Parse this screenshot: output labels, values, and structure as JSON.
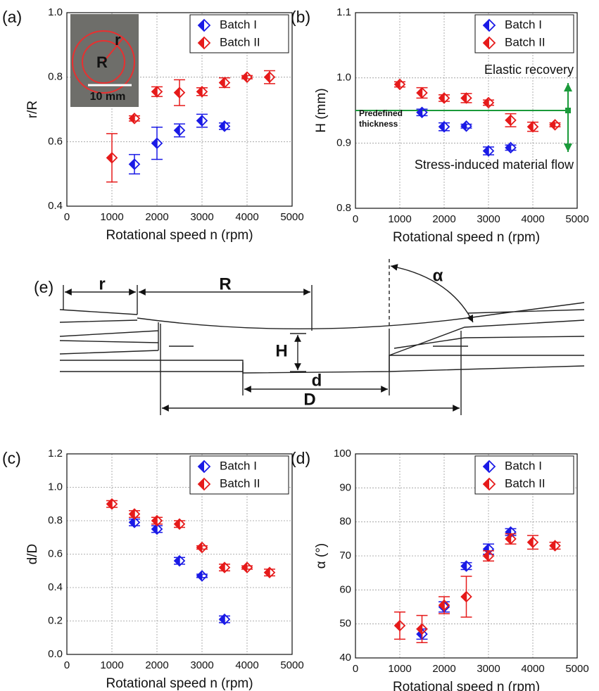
{
  "chart_data": [
    {
      "type": "scatter",
      "panel": "(a)",
      "xlabel": "Rotational speed n (rpm)",
      "ylabel": "r/R",
      "xlim": [
        0,
        5000
      ],
      "xticks": [
        0,
        1000,
        2000,
        3000,
        4000,
        5000
      ],
      "ylim": [
        0.4,
        1.0
      ],
      "yticks": [
        0.4,
        0.6,
        0.8,
        {
          "value": 1.0,
          "label": "1.0"
        }
      ],
      "grid": true,
      "legend": "upper right",
      "inset": {
        "labels": [
          "r",
          "R"
        ],
        "scale": "10 mm"
      },
      "series": [
        {
          "name": "Batch I",
          "color": "#1a1ae6",
          "x": [
            1500,
            2000,
            2500,
            3000,
            3500
          ],
          "values": [
            0.53,
            0.595,
            0.635,
            0.665,
            0.648
          ],
          "errors": [
            0.03,
            0.05,
            0.02,
            0.02,
            0.01
          ]
        },
        {
          "name": "Batch II",
          "color": "#e61a1a",
          "x": [
            1000,
            1500,
            2000,
            2500,
            3000,
            3500,
            4000,
            4500
          ],
          "values": [
            0.55,
            0.672,
            0.755,
            0.752,
            0.755,
            0.783,
            0.8,
            0.8
          ],
          "errors": [
            0.075,
            0.008,
            0.015,
            0.04,
            0.012,
            0.015,
            0.005,
            0.02
          ]
        }
      ]
    },
    {
      "type": "scatter",
      "panel": "(b)",
      "xlabel": "Rotational speed n (rpm)",
      "ylabel": "H (mm)",
      "xlim": [
        0,
        5000
      ],
      "xticks": [
        0,
        1000,
        2000,
        3000,
        4000,
        5000
      ],
      "ylim": [
        0.8,
        1.1
      ],
      "yticks": [
        0.8,
        0.9,
        {
          "value": 1.0,
          "label": "1.0"
        },
        1.1
      ],
      "grid": true,
      "legend": "upper right",
      "reference_line": 0.95,
      "reference_label": [
        "Predefined",
        "thickness"
      ],
      "annotations": [
        "Elastic recovery",
        "Stress-induced material flow"
      ],
      "series": [
        {
          "name": "Batch I",
          "color": "#1a1ae6",
          "x": [
            1500,
            2000,
            2500,
            3000,
            3500
          ],
          "values": [
            0.947,
            0.925,
            0.926,
            0.888,
            0.893
          ],
          "errors": [
            0.005,
            0.006,
            0.003,
            0.006,
            0.004
          ]
        },
        {
          "name": "Batch II",
          "color": "#e61a1a",
          "x": [
            1000,
            1500,
            2000,
            2500,
            3000,
            3500,
            4000,
            4500
          ],
          "values": [
            0.99,
            0.977,
            0.969,
            0.969,
            0.962,
            0.935,
            0.925,
            0.928
          ],
          "errors": [
            0.004,
            0.008,
            0.005,
            0.007,
            0.004,
            0.01,
            0.007,
            0.003
          ]
        }
      ]
    },
    {
      "type": "scatter",
      "panel": "(c)",
      "xlabel": "Rotational speed n (rpm)",
      "ylabel": "d/D",
      "xlim": [
        0,
        5000
      ],
      "xticks": [
        0,
        1000,
        2000,
        3000,
        4000,
        5000
      ],
      "ylim": [
        0.0,
        1.2
      ],
      "yticks": [
        {
          "value": 0.0,
          "label": "0.0"
        },
        0.2,
        0.4,
        0.6,
        0.8,
        {
          "value": 1.0,
          "label": "1.0"
        },
        1.2
      ],
      "grid": true,
      "legend": "upper right",
      "series": [
        {
          "name": "Batch I",
          "color": "#1a1ae6",
          "x": [
            1500,
            2000,
            2500,
            3000,
            3500
          ],
          "values": [
            0.79,
            0.75,
            0.56,
            0.47,
            0.21
          ],
          "errors": [
            0.02,
            0.02,
            0.02,
            0.01,
            0.02
          ]
        },
        {
          "name": "Batch II",
          "color": "#e61a1a",
          "x": [
            1000,
            1500,
            2000,
            2500,
            3000,
            3500,
            4000,
            4500
          ],
          "values": [
            0.9,
            0.84,
            0.8,
            0.78,
            0.64,
            0.52,
            0.52,
            0.49
          ],
          "errors": [
            0.02,
            0.02,
            0.02,
            0.02,
            0.01,
            0.02,
            0.01,
            0.02
          ]
        }
      ]
    },
    {
      "type": "scatter",
      "panel": "(d)",
      "xlabel": "Rotational speed n (rpm)",
      "ylabel": "α (°)",
      "xlim": [
        0,
        5000
      ],
      "xticks": [
        0,
        1000,
        2000,
        3000,
        4000,
        5000
      ],
      "ylim": [
        40,
        100
      ],
      "yticks": [
        40,
        50,
        60,
        70,
        80,
        90,
        100
      ],
      "grid": true,
      "legend": "upper right",
      "series": [
        {
          "name": "Batch I",
          "color": "#1a1ae6",
          "x": [
            1500,
            2000,
            2500,
            3000,
            3500
          ],
          "values": [
            47,
            55,
            67,
            72,
            77
          ],
          "errors": [
            1.5,
            1.5,
            1,
            1.5,
            1
          ]
        },
        {
          "name": "Batch II",
          "color": "#e61a1a",
          "x": [
            1000,
            1500,
            2000,
            2500,
            3000,
            3500,
            4000,
            4500
          ],
          "values": [
            49.5,
            48.5,
            55.5,
            58,
            70,
            75,
            74,
            73
          ],
          "errors": [
            4,
            4,
            2.5,
            6,
            1.5,
            1.5,
            2,
            1
          ]
        }
      ]
    }
  ],
  "diagram": {
    "panel": "(e)",
    "r": "r",
    "R": "R",
    "H": "H",
    "d": "d",
    "D": "D",
    "alpha": "α"
  }
}
